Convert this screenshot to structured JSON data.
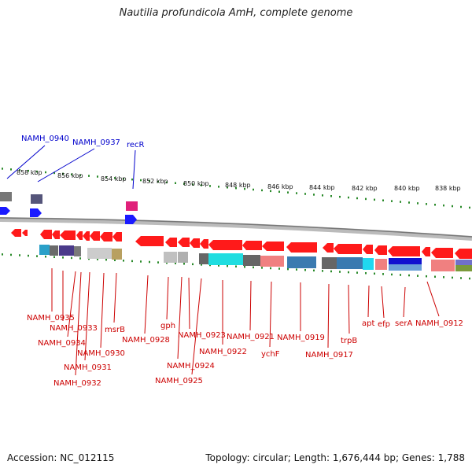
{
  "title": "Nautilia profundicola AmH, complete genome",
  "footer": {
    "accession": "Accession: NC_012115",
    "topology": "Topology: circular; Length: 1,676,444 bp; Genes: 1,788"
  },
  "kbp_ticks": [
    "858 kbp",
    "856 kbp",
    "854 kbp",
    "852 kbp",
    "850 kbp",
    "848 kbp",
    "846 kbp",
    "844 kbp",
    "842 kbp",
    "840 kbp",
    "838 kbp"
  ],
  "top_labels": [
    "NAMH_0940",
    "NAMH_0937",
    "recR"
  ],
  "bottom_labels": [
    "NAMH_0935",
    "NAMH_0933",
    "NAMH_0934",
    "msrB",
    "NAMH_0930",
    "NAMH_0931",
    "NAMH_0932",
    "NAMH_0928",
    "gph",
    "NAMH_0923",
    "NAMH_0924",
    "NAMH_0925",
    "NAMH_0922",
    "NAMH_0921",
    "ychF",
    "NAMH_0919",
    "NAMH_0917",
    "trpB",
    "apt",
    "efp",
    "serA",
    "NAMH_0912"
  ],
  "colors": {
    "forward_gene": "#1a1aff",
    "reverse_gene": "#ff1a1a",
    "backbone": "#999999",
    "tick": "#2a8a2a",
    "top_label": "#0000cc",
    "bottom_label": "#cc0000"
  }
}
